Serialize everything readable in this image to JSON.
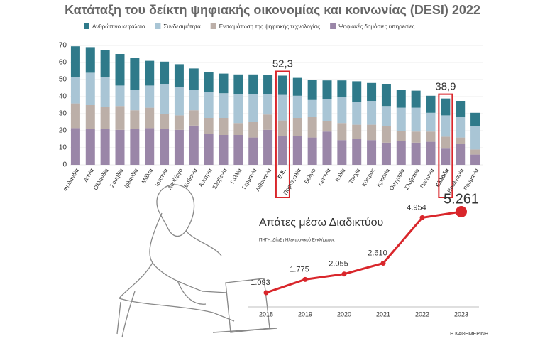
{
  "chart_data": [
    {
      "type": "stacked-bar",
      "title": "Κατάταξη του δείκτη ψηφιακής οικονομίας και κοινωνίας (DESI) 2022",
      "categories": [
        "Φινλανδία",
        "Δανία",
        "Ολλανδία",
        "Σουηδία",
        "Ιρλανδία",
        "Μάλτα",
        "Ισπανία",
        "Λουξ/ργο",
        "Εσθονία",
        "Αυστρία",
        "Σλοβενία",
        "Γαλλία",
        "Γερμανία",
        "Λιθουανία",
        "Ε.Ε.",
        "Πορτογαλία",
        "Βέλγιο",
        "Λετονία",
        "Ιταλία",
        "Τσεχία",
        "Κύπρος",
        "Κροατία",
        "Ουγγαρία",
        "Σλοβακία",
        "Πολωνία",
        "Ελλάδα",
        "Βουλγαρία",
        "Ρουμανία"
      ],
      "series": [
        {
          "name": "Ανθρώπινο κεφάλαιο",
          "color": "#2f7a8a",
          "values": [
            18,
            15,
            16,
            18.5,
            18.5,
            14.5,
            13,
            13.5,
            12.5,
            12,
            11.5,
            11.5,
            11.5,
            11,
            11.3,
            10.5,
            12,
            11,
            9.5,
            12,
            10.5,
            13,
            10.5,
            10,
            10,
            9.9,
            9.5,
            8
          ]
        },
        {
          "name": "Συνδεσιμότητα",
          "color": "#a9c5d5",
          "values": [
            15.5,
            19,
            17.5,
            12,
            12,
            13,
            17.5,
            16.5,
            12,
            15,
            14.5,
            17,
            16.5,
            12,
            15,
            13,
            10,
            13,
            15.5,
            13.5,
            14,
            12,
            13.5,
            14,
            11,
            12.5,
            12,
            13.5
          ]
        },
        {
          "name": "Ενσωμάτωση της ψηφιακής τεχνολογίας",
          "color": "#bcafa8",
          "values": [
            14.5,
            14,
            13,
            14,
            11,
            12,
            9,
            8.5,
            9,
            9.5,
            10,
            7,
            9,
            9,
            9,
            10.5,
            12,
            6,
            10,
            8.5,
            9,
            9.5,
            6,
            6.5,
            6,
            7,
            3.5,
            3
          ]
        },
        {
          "name": "Ψηφιακές δημόσιες υπηρεσίες",
          "color": "#9a86a8",
          "values": [
            21.5,
            21,
            21,
            20.5,
            21,
            21.5,
            21,
            20.5,
            23,
            18,
            17.5,
            17.5,
            16,
            20.5,
            17,
            17,
            16,
            19.5,
            14.5,
            15,
            14.5,
            13,
            14,
            13,
            13.5,
            9.5,
            12.5,
            6
          ]
        }
      ],
      "annotations": [
        {
          "category": "Ε.Ε.",
          "text": "52,3"
        },
        {
          "category": "Ελλάδα",
          "text": "38,9"
        }
      ],
      "highlight_color": "#d9262b",
      "ylim": [
        0,
        70
      ],
      "yticks": [
        0,
        10,
        20,
        30,
        40,
        50,
        60,
        70
      ],
      "grid": true
    },
    {
      "type": "line",
      "title": "Απάτες μέσω Διαδικτύου",
      "source": "ΠΗΓΗ: Δίωξη Ηλεκτρονικού Εγκλήματος",
      "x": [
        2018,
        2019,
        2020,
        2021,
        2022,
        2023
      ],
      "values": [
        1093,
        1775,
        2055,
        2610,
        4954,
        5261
      ],
      "value_labels": [
        "1.093",
        "1.775",
        "2.055",
        "2.610",
        "4.954",
        "5.261"
      ],
      "color": "#d9262b"
    }
  ],
  "credit": "Η ΚΑΘΗΜΕΡΙΝΗ"
}
